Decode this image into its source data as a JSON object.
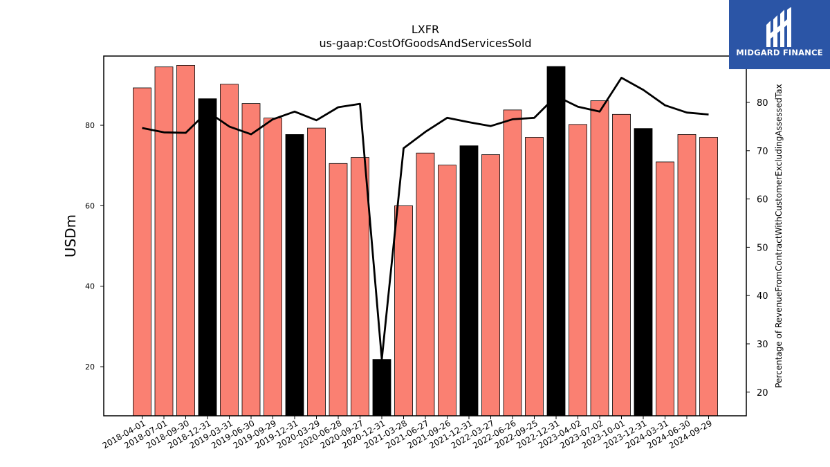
{
  "brand": {
    "name": "MIDGARD FINANCE",
    "bg_color": "#2b55a6",
    "icon": "midgard-logo-icon"
  },
  "chart_data": {
    "type": "bar",
    "title": "LXFR",
    "subtitle": "us-gaap:CostOfGoodsAndServicesSold",
    "ylabel": "USDm",
    "y2label": "Percentage of RevenueFromContractWithCustomerExcludingAssessedTax",
    "ylim": [
      7.8,
      97.2
    ],
    "y2lim": [
      15.1,
      89.6
    ],
    "yticks": [
      20,
      40,
      60,
      80
    ],
    "y2ticks": [
      20,
      30,
      40,
      50,
      60,
      70,
      80
    ],
    "grid": false,
    "legend": "none",
    "colors": {
      "bar": "#fa8072",
      "bar_q4": "#000000",
      "line": "#000000"
    },
    "categories": [
      "2018-04-01",
      "2018-07-01",
      "2018-09-30",
      "2018-12-31",
      "2019-03-31",
      "2019-06-30",
      "2019-09-29",
      "2019-12-31",
      "2020-03-29",
      "2020-06-28",
      "2020-09-27",
      "2020-12-31",
      "2021-03-28",
      "2021-06-27",
      "2021-09-26",
      "2021-12-31",
      "2022-03-27",
      "2022-06-26",
      "2022-09-25",
      "2022-12-31",
      "2023-04-02",
      "2023-07-02",
      "2023-10-01",
      "2023-12-31",
      "2024-03-31",
      "2024-06-30",
      "2024-09-29"
    ],
    "series": [
      {
        "kind": "bar",
        "axis": "left",
        "values": [
          89.3,
          94.5,
          94.9,
          86.6,
          90.2,
          85.4,
          81.8,
          77.7,
          79.3,
          70.5,
          72.0,
          21.8,
          60.0,
          73.1,
          70.1,
          74.9,
          72.7,
          83.8,
          77.0,
          94.6,
          80.2,
          86.1,
          82.7,
          79.2,
          70.9,
          77.7,
          77.0
        ],
        "highlight": [
          false,
          false,
          false,
          true,
          false,
          false,
          false,
          true,
          false,
          false,
          false,
          true,
          false,
          false,
          false,
          true,
          false,
          false,
          false,
          true,
          false,
          false,
          false,
          true,
          false,
          false,
          false
        ]
      },
      {
        "kind": "line",
        "axis": "right",
        "values": [
          74.7,
          73.8,
          73.7,
          78.1,
          75.0,
          73.4,
          76.5,
          78.1,
          76.3,
          79.0,
          79.7,
          26.8,
          70.5,
          73.9,
          76.8,
          75.9,
          75.1,
          76.5,
          76.8,
          81.3,
          79.1,
          78.1,
          85.1,
          82.6,
          79.4,
          77.9,
          77.5
        ]
      }
    ]
  }
}
